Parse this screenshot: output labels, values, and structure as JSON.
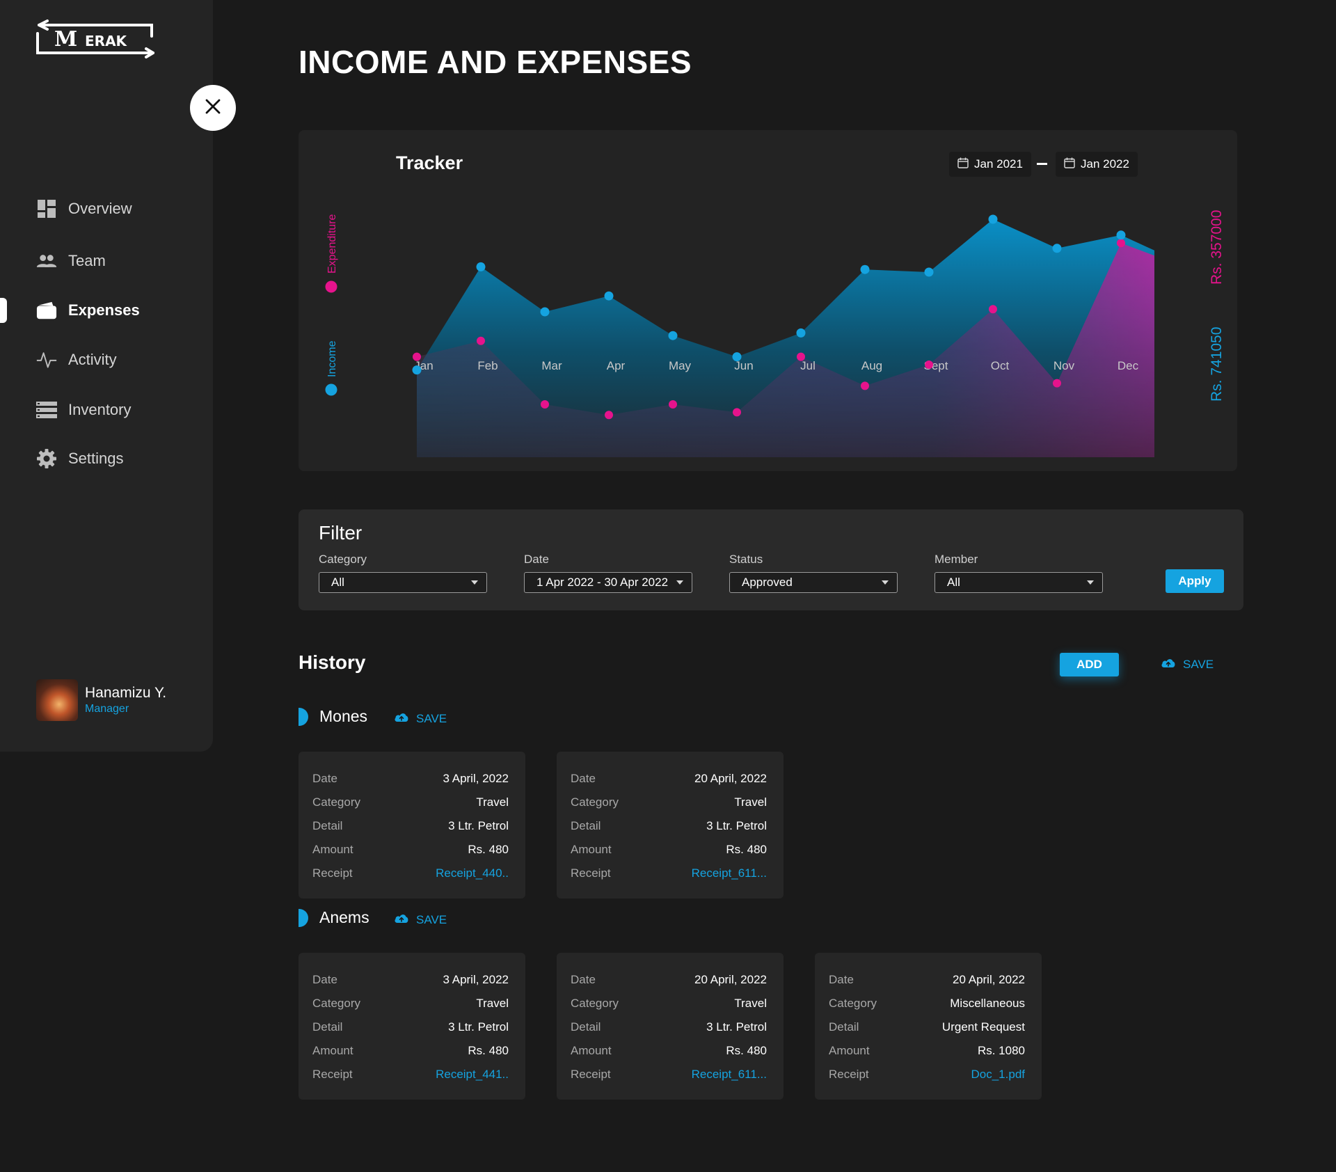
{
  "app": {
    "logo_text": "MERAK",
    "page_title": "INCOME AND EXPENSES"
  },
  "colors": {
    "accent": "#15a3e0",
    "expenditure": "#e6138c",
    "income": "#15a3e0",
    "background": "#1a1a1a",
    "panel": "#242424"
  },
  "sidebar": {
    "items": [
      {
        "label": "Overview",
        "icon": "dashboard-icon"
      },
      {
        "label": "Team",
        "icon": "team-icon"
      },
      {
        "label": "Expenses",
        "icon": "wallet-icon",
        "active": true
      },
      {
        "label": "Activity",
        "icon": "activity-icon"
      },
      {
        "label": "Inventory",
        "icon": "inventory-icon"
      },
      {
        "label": "Settings",
        "icon": "gear-icon"
      }
    ],
    "user": {
      "name": "Hanamizu Y.",
      "role": "Manager"
    }
  },
  "tracker": {
    "title": "Tracker",
    "date_from": "Jan 2021",
    "date_to": "Jan 2022",
    "legend_expenditure": "Expenditure",
    "legend_income": "Income",
    "total_expenditure": "Rs. 357000",
    "total_income": "Rs. 741050"
  },
  "chart_data": {
    "type": "area",
    "categories": [
      "Jan",
      "Feb",
      "Mar",
      "Apr",
      "May",
      "Jun",
      "Jul",
      "Aug",
      "Sept",
      "Oct",
      "Nov",
      "Dec"
    ],
    "series": [
      {
        "name": "Income",
        "values": [
          33,
          72,
          55,
          61,
          46,
          38,
          47,
          71,
          70,
          90,
          79,
          84
        ]
      },
      {
        "name": "Expenditure",
        "values": [
          38,
          44,
          20,
          16,
          20,
          17,
          38,
          27,
          35,
          56,
          28,
          81
        ]
      }
    ],
    "ylim": [
      0,
      100
    ],
    "grid": false,
    "legend": "left"
  },
  "filter": {
    "title": "Filter",
    "category": {
      "label": "Category",
      "value": "All"
    },
    "date": {
      "label": "Date",
      "value": "1 Apr 2022 - 30 Apr 2022"
    },
    "status": {
      "label": "Status",
      "value": "Approved"
    },
    "member": {
      "label": "Member",
      "value": "All"
    },
    "apply_label": "Apply"
  },
  "history": {
    "title": "History",
    "add_label": "ADD",
    "save_label": "SAVE",
    "row_labels": {
      "date": "Date",
      "category": "Category",
      "detail": "Detail",
      "amount": "Amount",
      "receipt": "Receipt"
    },
    "groups": [
      {
        "name": "Mones",
        "save_label": "SAVE",
        "records": [
          {
            "date": "3 April, 2022",
            "category": "Travel",
            "detail": "3 Ltr. Petrol",
            "amount": "Rs. 480",
            "receipt": "Receipt_440.."
          },
          {
            "date": "20 April, 2022",
            "category": "Travel",
            "detail": "3 Ltr. Petrol",
            "amount": "Rs. 480",
            "receipt": "Receipt_611..."
          }
        ]
      },
      {
        "name": "Anems",
        "save_label": "SAVE",
        "records": [
          {
            "date": "3 April, 2022",
            "category": "Travel",
            "detail": "3 Ltr. Petrol",
            "amount": "Rs. 480",
            "receipt": "Receipt_441.."
          },
          {
            "date": "20 April, 2022",
            "category": "Travel",
            "detail": "3 Ltr. Petrol",
            "amount": "Rs. 480",
            "receipt": "Receipt_611..."
          },
          {
            "date": "20 April, 2022",
            "category": "Miscellaneous",
            "detail": "Urgent Request",
            "amount": "Rs. 1080",
            "receipt": "Doc_1.pdf"
          }
        ]
      }
    ]
  }
}
